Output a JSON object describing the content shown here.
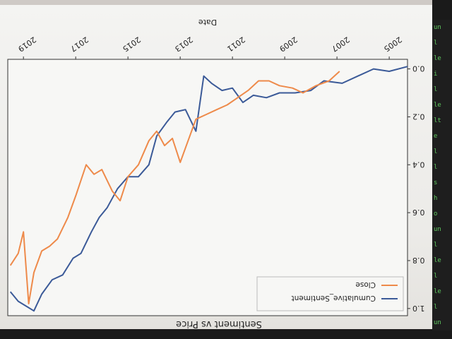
{
  "chart_data": {
    "type": "line",
    "title": "Sentiment vs Price",
    "xlabel": "Date",
    "ylabel": "",
    "xlim": [
      2004.3,
      2019.6
    ],
    "ylim": [
      1.03,
      -0.04
    ],
    "x_ticks": [
      2005,
      2007,
      2009,
      2011,
      2013,
      2015,
      2017,
      2019
    ],
    "x_tick_labels": [
      "2005",
      "2007",
      "2009",
      "2011",
      "2013",
      "2015",
      "2017",
      "2019"
    ],
    "y_ticks": [
      0.0,
      0.2,
      0.4,
      0.6,
      0.8,
      1.0
    ],
    "y_tick_labels": [
      "0.0",
      "0.2",
      "0.4",
      "0.6",
      "0.8",
      "1.0"
    ],
    "legend": "top-left",
    "series": [
      {
        "name": "Cumulative_Sentiment",
        "color": "#3b5a98",
        "x": [
          2004.3,
          2005.0,
          2005.6,
          2006.2,
          2006.8,
          2007.5,
          2008.0,
          2008.6,
          2009.2,
          2009.7,
          2010.2,
          2010.6,
          2011.0,
          2011.4,
          2011.8,
          2012.1,
          2012.4,
          2012.8,
          2013.2,
          2013.5,
          2013.9,
          2014.2,
          2014.6,
          2015.0,
          2015.4,
          2015.8,
          2016.1,
          2016.4,
          2016.8,
          2017.1,
          2017.5,
          2017.9,
          2018.3,
          2018.6,
          2018.9,
          2019.2,
          2019.5
        ],
        "y": [
          -0.01,
          0.01,
          0.0,
          0.03,
          0.06,
          0.05,
          0.09,
          0.1,
          0.1,
          0.12,
          0.11,
          0.14,
          0.08,
          0.09,
          0.06,
          0.03,
          0.26,
          0.17,
          0.18,
          0.22,
          0.28,
          0.4,
          0.45,
          0.45,
          0.5,
          0.58,
          0.62,
          0.68,
          0.77,
          0.79,
          0.86,
          0.88,
          0.94,
          1.01,
          0.99,
          0.97,
          0.93
        ]
      },
      {
        "name": "Close",
        "color": "#ee8a4a",
        "x": [
          2006.9,
          2007.3,
          2007.8,
          2008.3,
          2008.7,
          2009.2,
          2009.6,
          2010.0,
          2010.4,
          2010.8,
          2011.2,
          2011.6,
          2012.0,
          2012.4,
          2012.7,
          2013.0,
          2013.3,
          2013.6,
          2013.9,
          2014.2,
          2014.6,
          2015.0,
          2015.3,
          2015.6,
          2016.0,
          2016.3,
          2016.6,
          2017.0,
          2017.3,
          2017.7,
          2018.0,
          2018.3,
          2018.6,
          2018.8,
          2019.0,
          2019.2,
          2019.5
        ],
        "y": [
          0.01,
          0.05,
          0.07,
          0.1,
          0.08,
          0.07,
          0.05,
          0.05,
          0.09,
          0.12,
          0.15,
          0.17,
          0.19,
          0.21,
          0.3,
          0.39,
          0.29,
          0.32,
          0.26,
          0.3,
          0.4,
          0.45,
          0.55,
          0.51,
          0.42,
          0.44,
          0.4,
          0.53,
          0.62,
          0.71,
          0.74,
          0.76,
          0.85,
          0.98,
          0.68,
          0.77,
          0.82
        ]
      }
    ]
  }
}
